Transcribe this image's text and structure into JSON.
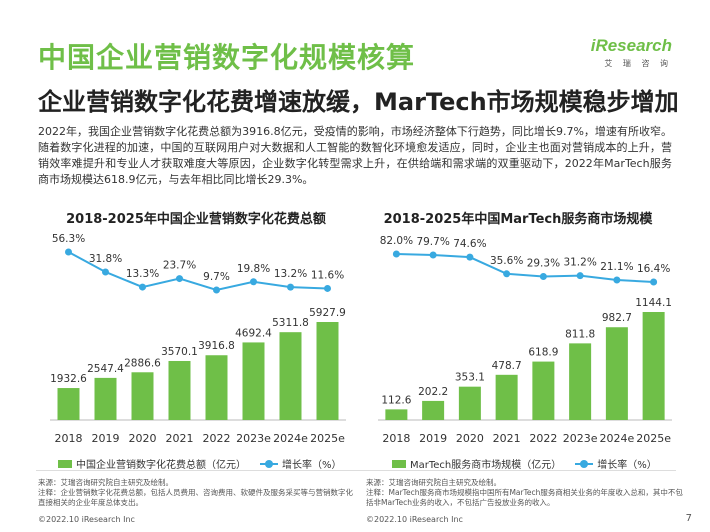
{
  "header": {
    "title": "中国企业营销数字化规模核算",
    "subtitle": "企业营销数字化花费增速放缓，MarTech市场规模稳步增加",
    "logo_brand": "iResearch",
    "logo_sub": "艾 瑞 咨 询"
  },
  "intro": "2022年，我国企业营销数字化花费总额为3916.8亿元，受疫情的影响，市场经济整体下行趋势，同比增长9.7%，增速有所收窄。随着数字化进程的加速，中国的互联网用户对大数据和人工智能的数智化环境愈发适应，同时，企业主也面对营销成本的上升，营销效率难提升和专业人才获取难度大等原因，企业数字化转型需求上升，在供给端和需求端的双重驱动下，2022年MarTech服务商市场规模达618.9亿元，与去年相比同比增长29.3%。",
  "chart_data": [
    {
      "type": "bar",
      "title": "2018-2025年中国企业营销数字化花费总额",
      "categories": [
        "2018",
        "2019",
        "2020",
        "2021",
        "2022",
        "2023e",
        "2024e",
        "2025e"
      ],
      "series": [
        {
          "name": "中国企业营销数字化花费总额（亿元）",
          "type": "bar",
          "values": [
            1932.6,
            2547.4,
            2886.6,
            3570.1,
            3916.8,
            4692.4,
            5311.8,
            5927.9
          ]
        },
        {
          "name": "增长率（%）",
          "type": "line",
          "values": [
            56.3,
            31.8,
            13.3,
            23.7,
            9.7,
            19.8,
            13.2,
            11.6
          ]
        }
      ],
      "value_labels": [
        "1932.6",
        "2547.4",
        "2886.6",
        "3570.1",
        "3916.8",
        "4692.4",
        "5311.8",
        "5927.9"
      ],
      "rate_labels": [
        "56.3%",
        "31.8%",
        "13.3%",
        "23.7%",
        "9.7%",
        "19.8%",
        "13.2%",
        "11.6%"
      ],
      "legend": [
        "中国企业营销数字化花费总额（亿元）",
        "增长率（%）"
      ],
      "legend_position": "bottom",
      "grid": false,
      "colors": {
        "bar": "#6fbf48",
        "line": "#38a9e0"
      }
    },
    {
      "type": "bar",
      "title": "2018-2025年中国MarTech服务商市场规模",
      "categories": [
        "2018",
        "2019",
        "2020",
        "2021",
        "2022",
        "2023e",
        "2024e",
        "2025e"
      ],
      "series": [
        {
          "name": "MarTech服务商市场规模（亿元）",
          "type": "bar",
          "values": [
            112.6,
            202.2,
            353.1,
            478.7,
            618.9,
            811.8,
            982.7,
            1144.1
          ]
        },
        {
          "name": "增长率（%）",
          "type": "line",
          "values": [
            82.0,
            79.7,
            74.6,
            35.6,
            29.3,
            31.2,
            21.1,
            16.4
          ]
        }
      ],
      "value_labels": [
        "112.6",
        "202.2",
        "353.1",
        "478.7",
        "618.9",
        "811.8",
        "982.7",
        "1144.1"
      ],
      "rate_labels": [
        "82.0%",
        "79.7%",
        "74.6%",
        "35.6%",
        "29.3%",
        "31.2%",
        "21.1%",
        "16.4%"
      ],
      "legend": [
        "MarTech服务商市场规模（亿元）",
        "增长率（%）"
      ],
      "legend_position": "bottom",
      "grid": false,
      "colors": {
        "bar": "#6fbf48",
        "line": "#38a9e0"
      }
    }
  ],
  "notes": {
    "left": "来源：艾瑞咨询研究院自主研究及绘制。\n注释：企业营销数字化花费总额，包括人员费用、咨询费用、软硬件及服务采买等与营销数字化直接相关的企业年度总体支出。",
    "right": "来源：艾瑞咨询研究院自主研究及绘制。\n注释：MarTech服务商市场规模指中国所有MarTech服务商相关业务的年度收入总和，其中不包括非MarTech业务的收入，不包括广告投放业务的收入。"
  },
  "footer": {
    "left": "©2022.10 iResearch Inc",
    "right": "©2022.10 iResearch Inc",
    "page": "7"
  }
}
